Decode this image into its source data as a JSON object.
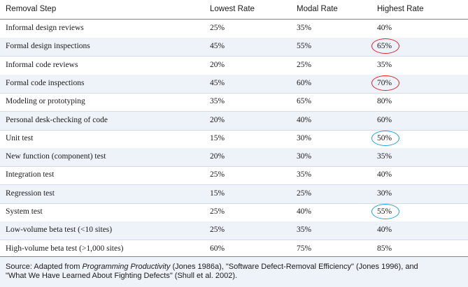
{
  "table": {
    "headers": [
      "Removal Step",
      "Lowest Rate",
      "Modal Rate",
      "Highest Rate"
    ],
    "rows": [
      {
        "step": "Informal design reviews",
        "lowest": "25%",
        "modal": "35%",
        "highest": "40%",
        "mark": ""
      },
      {
        "step": "Formal design inspections",
        "lowest": "45%",
        "modal": "55%",
        "highest": "65%",
        "mark": "red"
      },
      {
        "step": "Informal code reviews",
        "lowest": "20%",
        "modal": "25%",
        "highest": "35%",
        "mark": ""
      },
      {
        "step": "Formal code inspections",
        "lowest": "45%",
        "modal": "60%",
        "highest": "70%",
        "mark": "red"
      },
      {
        "step": "Modeling or prototyping",
        "lowest": "35%",
        "modal": "65%",
        "highest": "80%",
        "mark": ""
      },
      {
        "step": "Personal desk-checking of code",
        "lowest": "20%",
        "modal": "40%",
        "highest": "60%",
        "mark": ""
      },
      {
        "step": "Unit test",
        "lowest": "15%",
        "modal": "30%",
        "highest": "50%",
        "mark": "blue"
      },
      {
        "step": "New function (component) test",
        "lowest": "20%",
        "modal": "30%",
        "highest": "35%",
        "mark": ""
      },
      {
        "step": "Integration test",
        "lowest": "25%",
        "modal": "35%",
        "highest": "40%",
        "mark": ""
      },
      {
        "step": "Regression test",
        "lowest": "15%",
        "modal": "25%",
        "highest": "30%",
        "mark": ""
      },
      {
        "step": "System test",
        "lowest": "25%",
        "modal": "40%",
        "highest": "55%",
        "mark": "blue"
      },
      {
        "step": "Low-volume beta test (<10 sites)",
        "lowest": "25%",
        "modal": "35%",
        "highest": "40%",
        "mark": ""
      },
      {
        "step": "High-volume beta test (>1,000 sites)",
        "lowest": "60%",
        "modal": "75%",
        "highest": "85%",
        "mark": ""
      }
    ]
  },
  "source": {
    "prefix": "Source: Adapted from ",
    "book_title": "Programming Productivity",
    "rest_line1": " (Jones 1986a), \"Software Defect-Removal Efficiency\" (Jones 1996), and",
    "line2": "\"What We Have Learned About Fighting Defects\" (Shull et al. 2002)."
  },
  "colors": {
    "red_mark": "#e0202a",
    "blue_mark": "#1e9fdc",
    "row_shade": "#eef2f9"
  }
}
